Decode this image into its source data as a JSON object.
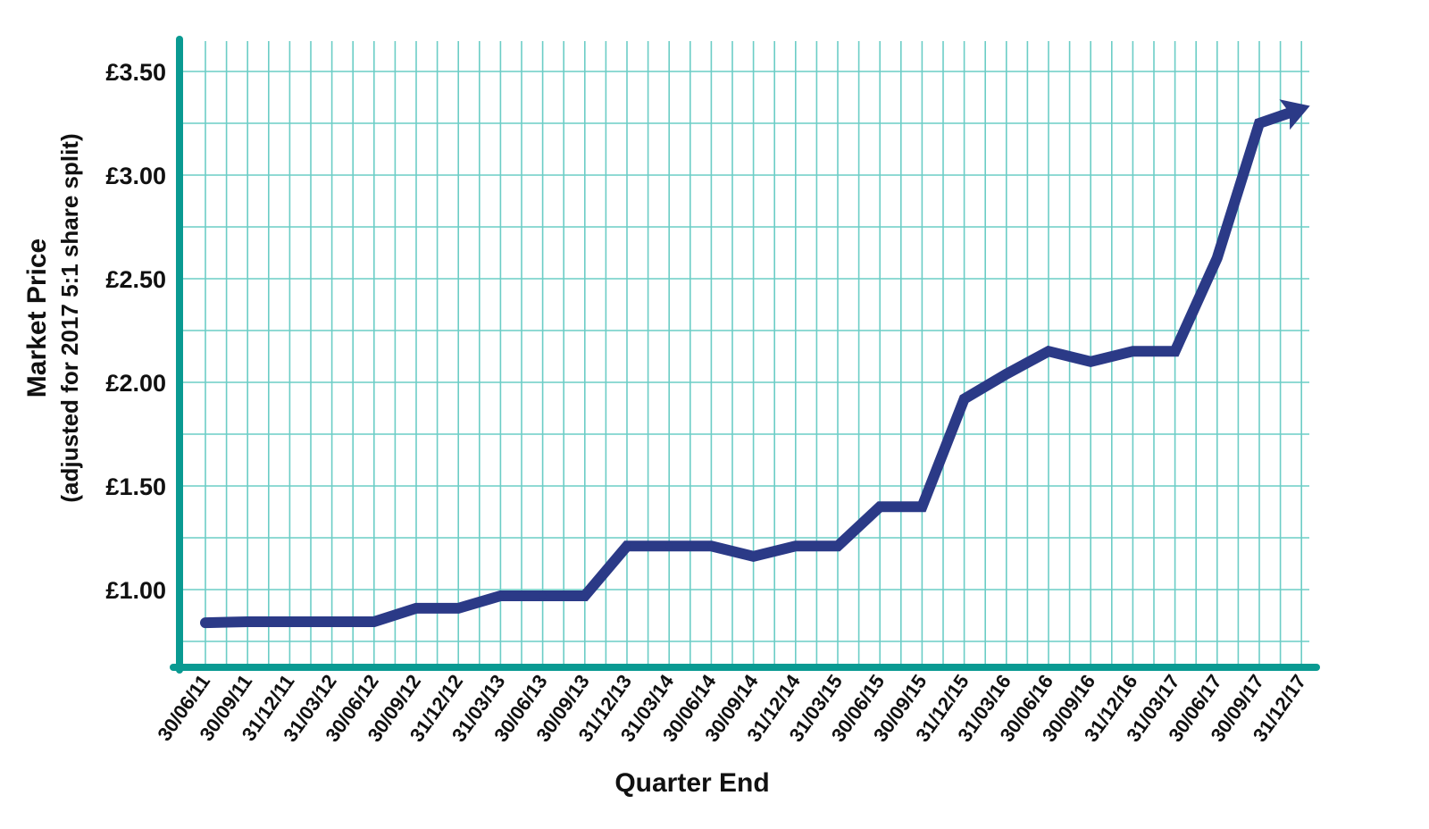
{
  "chart_data": {
    "type": "line",
    "xlabel": "Quarter End",
    "ylabel": "Market Price",
    "ylabel_sub": "(adjusted for 2017 5:1 share split)",
    "categories": [
      "30/06/11",
      "30/09/11",
      "31/12/11",
      "31/03/12",
      "30/06/12",
      "30/09/12",
      "31/12/12",
      "31/03/13",
      "30/06/13",
      "30/09/13",
      "31/12/13",
      "31/03/14",
      "30/06/14",
      "30/09/14",
      "31/12/14",
      "31/03/15",
      "30/06/15",
      "30/09/15",
      "31/12/15",
      "31/03/16",
      "30/06/16",
      "30/09/16",
      "31/12/16",
      "31/03/17",
      "30/06/17",
      "30/09/17",
      "31/12/17"
    ],
    "series": [
      {
        "values": [
          0.84,
          0.845,
          0.845,
          0.845,
          0.845,
          0.91,
          0.91,
          0.97,
          0.97,
          0.97,
          1.21,
          1.21,
          1.21,
          1.16,
          1.21,
          1.21,
          1.4,
          1.4,
          1.92,
          2.04,
          2.15,
          2.1,
          2.15,
          2.15,
          2.6,
          3.25,
          3.32
        ]
      }
    ],
    "yticks": [
      {
        "value": 1.0,
        "label": "£1.00"
      },
      {
        "value": 1.5,
        "label": "£1.50"
      },
      {
        "value": 2.0,
        "label": "£2.00"
      },
      {
        "value": 2.5,
        "label": "£2.50"
      },
      {
        "value": 3.0,
        "label": "£3.00"
      },
      {
        "value": 3.5,
        "label": "£3.50"
      }
    ],
    "ylim": [
      0.63,
      3.67
    ],
    "grid": true,
    "end_marker": "arrow",
    "colors": {
      "line": "#2b3a87",
      "axis": "#0a9a92",
      "grid": "#6ccdc6"
    }
  }
}
